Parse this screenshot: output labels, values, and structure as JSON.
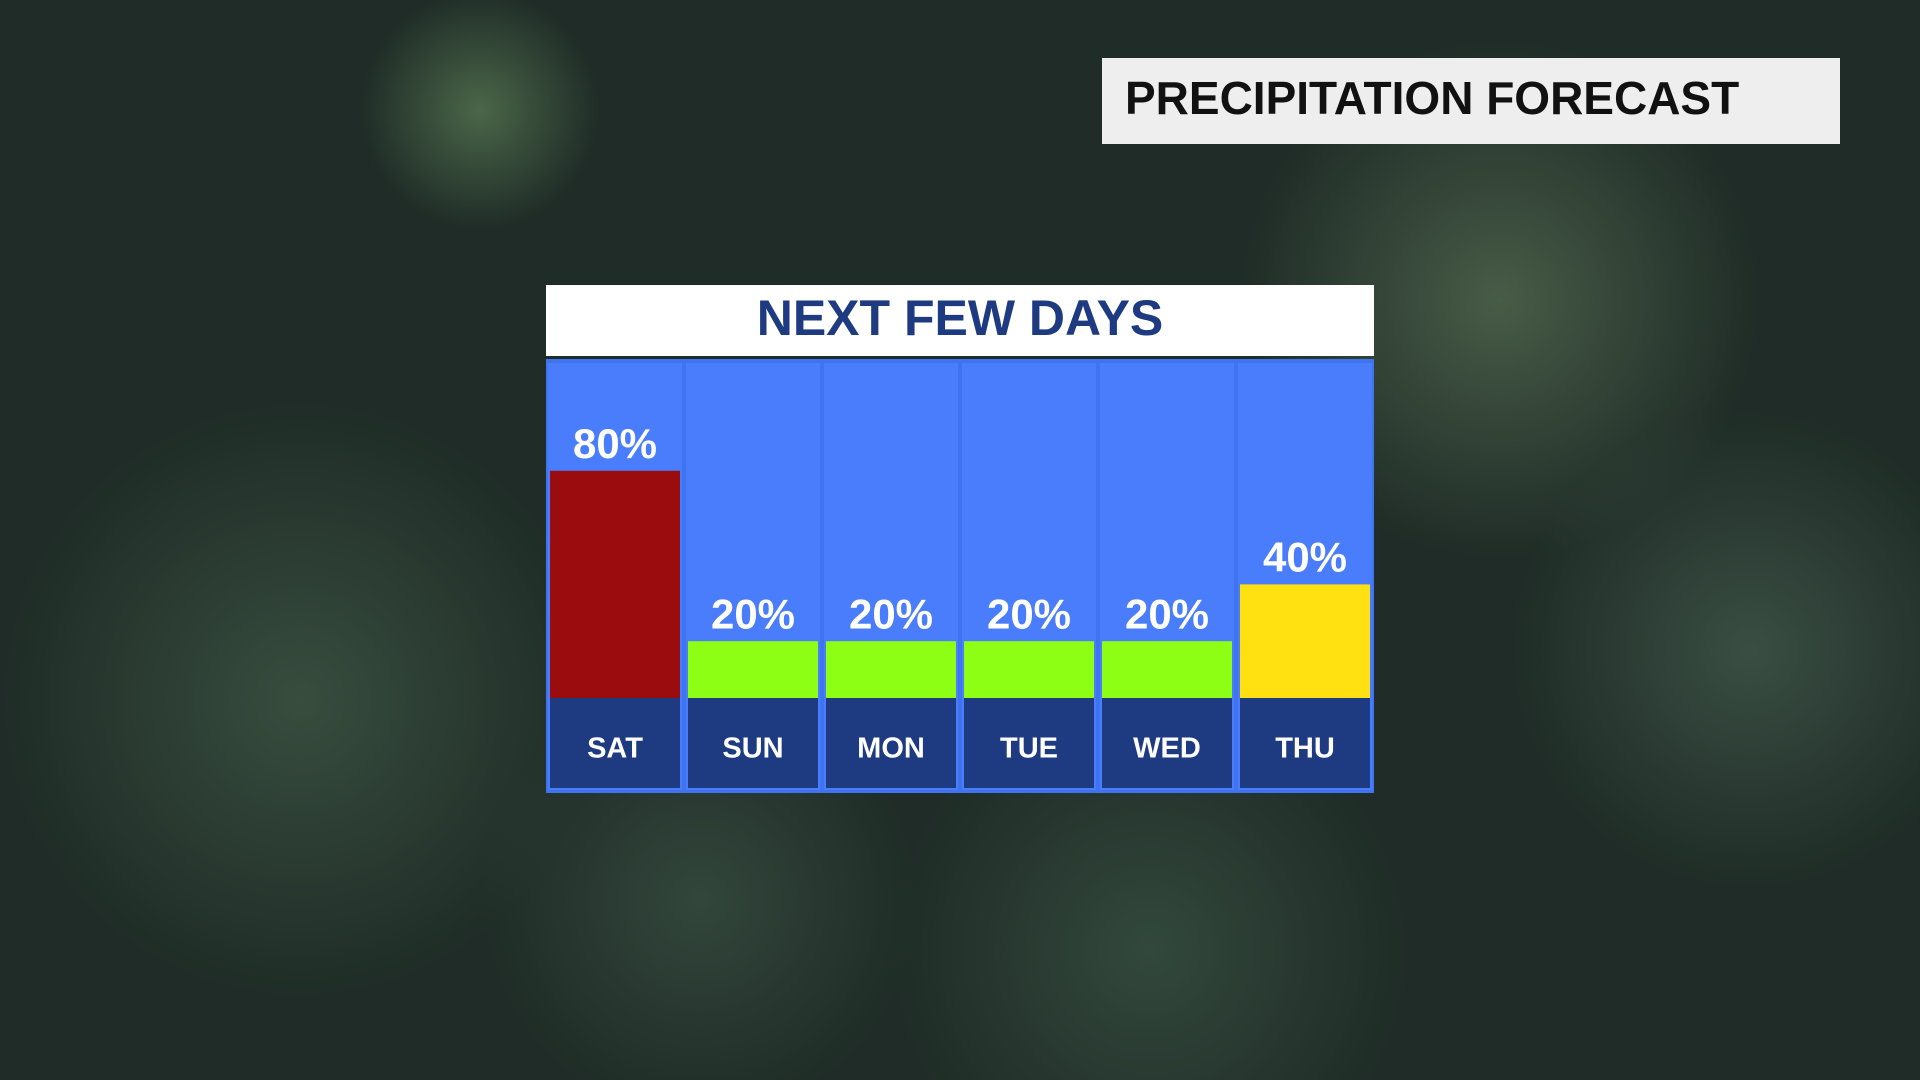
{
  "chart_data": {
    "type": "bar",
    "title": "PRECIPITATION FORECAST",
    "subtitle": "NEXT FEW DAYS",
    "categories": [
      "SAT",
      "SUN",
      "MON",
      "TUE",
      "WED",
      "THU"
    ],
    "values": [
      80,
      20,
      20,
      20,
      20,
      40
    ],
    "value_labels": [
      "80%",
      "20%",
      "20%",
      "20%",
      "20%",
      "40%"
    ],
    "colors": [
      "#9a0c0e",
      "#8cff14",
      "#8cff14",
      "#8cff14",
      "#8cff14",
      "#ffe010"
    ],
    "ylim": [
      0,
      100
    ]
  }
}
